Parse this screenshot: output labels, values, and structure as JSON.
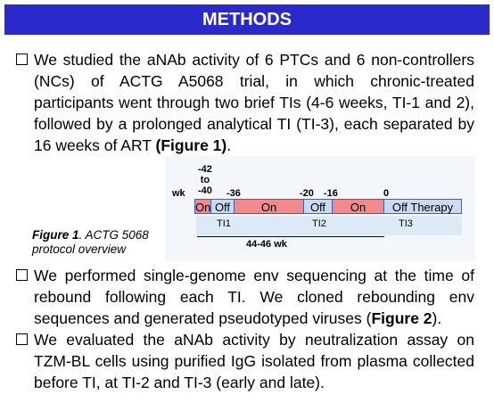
{
  "header": {
    "title": "METHODS"
  },
  "bullets": [
    [
      {
        "text": "We studied the aNAb activity of 6 PTCs and 6 non-controllers (NCs) of ACTG A5068 trial, in which chronic-treated participants went through two brief TIs (4-6 weeks, TI-1 and 2), followed by a prolonged analytical TI (TI-3), each separated by 16 weeks of ART ",
        "bold": false
      },
      {
        "text": "(Figure 1)",
        "bold": true
      },
      {
        "text": ".",
        "bold": false
      }
    ],
    [
      {
        "text": "We performed single-genome env sequencing at the time of rebound following each TI. We cloned rebounding env sequences and generated pseudotyped viruses (",
        "bold": false
      },
      {
        "text": "Figure 2",
        "bold": true
      },
      {
        "text": ").",
        "bold": false
      }
    ],
    [
      {
        "text": "We evaluated the aNAb activity by neutralization assay on TZM-BL cells using purified IgG isolated from plasma collected before TI, at TI-2 and TI-3 (early and late).",
        "bold": false
      }
    ]
  ],
  "figure": {
    "caption_label": "Figure 1",
    "caption_text": ". ACTG 5068 protocol overview",
    "unit": "wk",
    "week_labels": [
      "-42\nto\n-40",
      "-36",
      "-20",
      "-16",
      "0"
    ],
    "segments": [
      "On",
      "Off",
      "On",
      "Off",
      "On",
      "Off Therapy"
    ],
    "interruptions": [
      "TI1",
      "TI2",
      "TI3"
    ],
    "span": "44-46 wk"
  }
}
